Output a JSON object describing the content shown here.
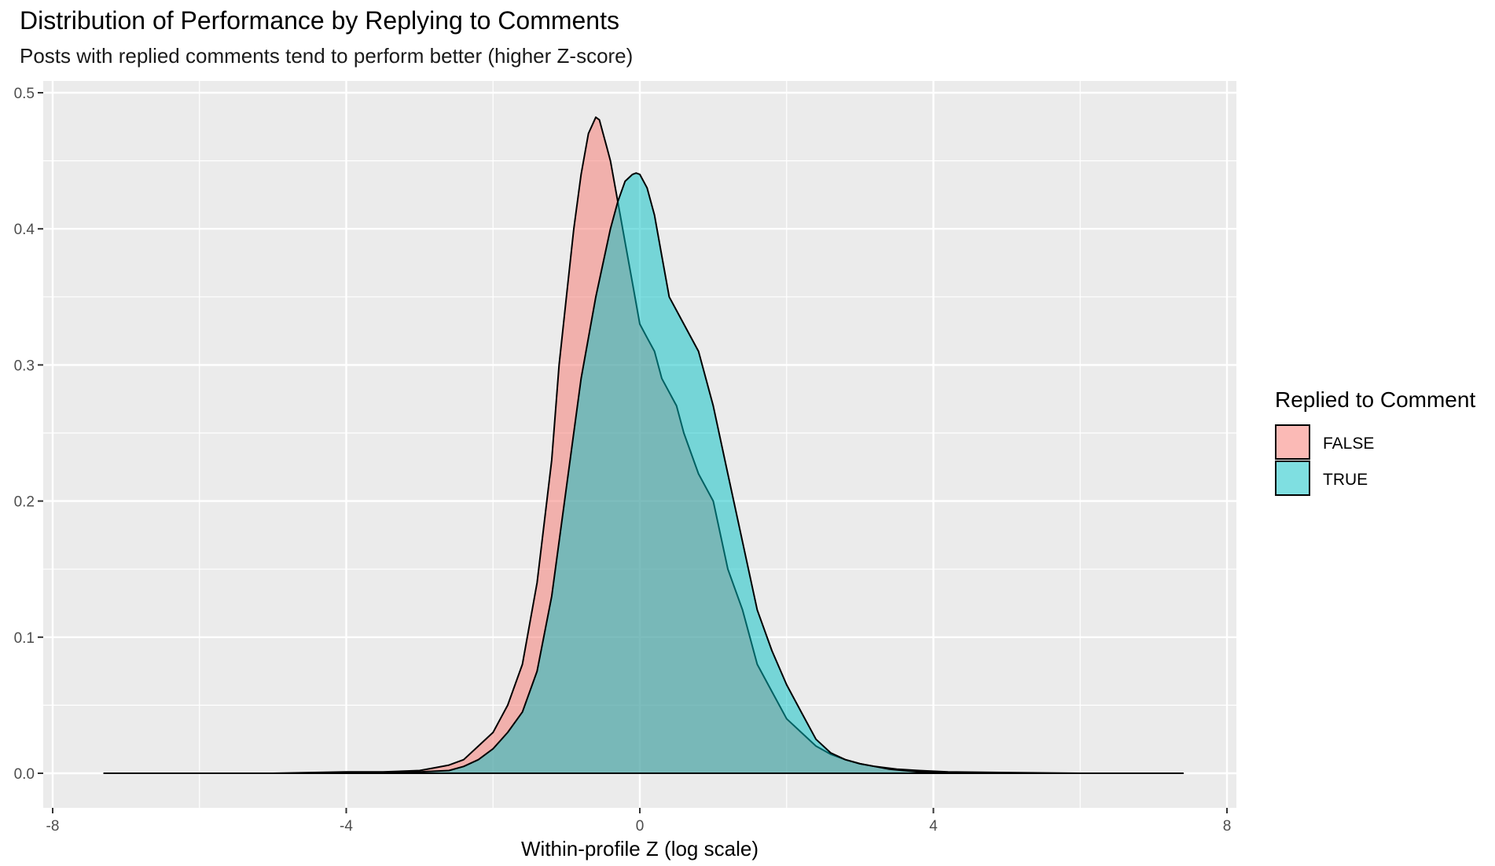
{
  "title": "Distribution of Performance by Replying to Comments",
  "subtitle": "Posts with replied comments tend to perform better (higher Z-score)",
  "chart_data": {
    "type": "area",
    "chart_kind": "density",
    "title": "Distribution of Performance by Replying to Comments",
    "subtitle": "Posts with replied comments tend to perform better (higher Z-score)",
    "xlabel": "Within-profile Z (log scale)",
    "ylabel": "",
    "xlim": [
      -8,
      8
    ],
    "ylim": [
      0,
      0.5
    ],
    "x_ticks": [
      -8,
      -4,
      0,
      4,
      8
    ],
    "x_tick_labels": [
      "-8",
      "-4",
      "0",
      "4",
      "8"
    ],
    "y_ticks": [
      0,
      0.1,
      0.2,
      0.3,
      0.4,
      0.5
    ],
    "y_tick_labels": [
      "0.0",
      "0.1",
      "0.2",
      "0.3",
      "0.4",
      "0.5"
    ],
    "grid": true,
    "legend": {
      "title": "Replied to Comment",
      "position": "right"
    },
    "series": [
      {
        "name": "FALSE",
        "color": "#F8766D",
        "x": [
          -7.3,
          -5.0,
          -4.0,
          -3.5,
          -3.0,
          -2.8,
          -2.6,
          -2.4,
          -2.2,
          -2.0,
          -1.9,
          -1.8,
          -1.6,
          -1.4,
          -1.2,
          -1.1,
          -1.0,
          -0.9,
          -0.8,
          -0.7,
          -0.6,
          -0.55,
          -0.5,
          -0.45,
          -0.4,
          -0.3,
          -0.2,
          -0.1,
          0.0,
          0.1,
          0.2,
          0.3,
          0.5,
          0.6,
          0.8,
          1.0,
          1.2,
          1.4,
          1.6,
          1.8,
          2.0,
          2.2,
          2.4,
          2.6,
          2.8,
          3.0,
          3.2,
          3.5,
          3.8,
          4.2,
          5.0,
          6.0,
          7.4
        ],
        "y": [
          0.0,
          0.0,
          0.001,
          0.001,
          0.002,
          0.004,
          0.006,
          0.01,
          0.02,
          0.03,
          0.04,
          0.05,
          0.08,
          0.14,
          0.23,
          0.3,
          0.35,
          0.4,
          0.44,
          0.47,
          0.482,
          0.48,
          0.47,
          0.46,
          0.45,
          0.42,
          0.39,
          0.36,
          0.33,
          0.32,
          0.31,
          0.29,
          0.27,
          0.25,
          0.22,
          0.2,
          0.15,
          0.12,
          0.08,
          0.06,
          0.04,
          0.03,
          0.02,
          0.014,
          0.01,
          0.007,
          0.005,
          0.003,
          0.002,
          0.001,
          0.0005,
          0.0,
          0.0
        ]
      },
      {
        "name": "TRUE",
        "color": "#00BFC4",
        "x": [
          -7.3,
          -5.0,
          -4.0,
          -3.5,
          -3.0,
          -2.6,
          -2.4,
          -2.2,
          -2.0,
          -1.8,
          -1.6,
          -1.4,
          -1.2,
          -1.0,
          -0.8,
          -0.6,
          -0.4,
          -0.3,
          -0.2,
          -0.1,
          -0.05,
          0.0,
          0.1,
          0.2,
          0.3,
          0.4,
          0.6,
          0.8,
          1.0,
          1.2,
          1.4,
          1.6,
          1.8,
          2.0,
          2.2,
          2.4,
          2.6,
          2.8,
          3.0,
          3.2,
          3.4,
          3.6,
          3.8,
          4.2,
          5.0,
          6.0,
          7.4
        ],
        "y": [
          0.0,
          0.0,
          0.0,
          0.0005,
          0.001,
          0.002,
          0.005,
          0.01,
          0.018,
          0.03,
          0.045,
          0.075,
          0.13,
          0.21,
          0.29,
          0.35,
          0.4,
          0.42,
          0.435,
          0.44,
          0.441,
          0.44,
          0.43,
          0.41,
          0.38,
          0.35,
          0.33,
          0.31,
          0.27,
          0.22,
          0.17,
          0.12,
          0.09,
          0.065,
          0.045,
          0.025,
          0.015,
          0.01,
          0.007,
          0.005,
          0.003,
          0.002,
          0.001,
          0.0005,
          0.0,
          0.0,
          0.0
        ]
      }
    ]
  }
}
